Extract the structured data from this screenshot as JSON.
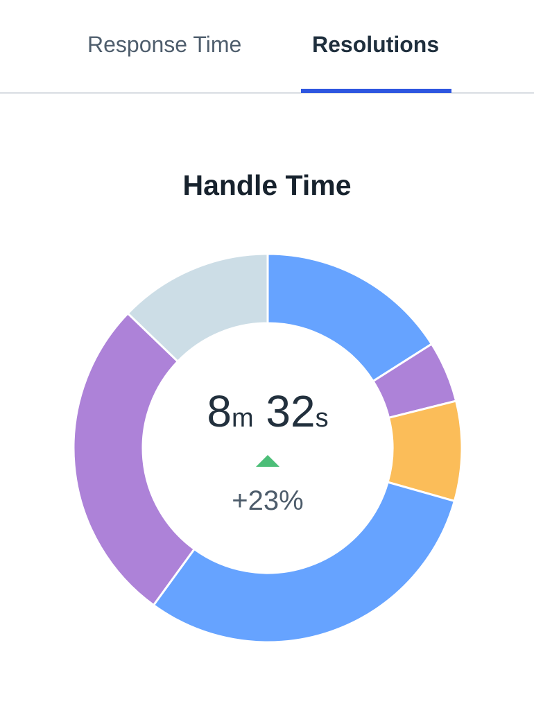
{
  "tabs": [
    {
      "label": "Response Time",
      "active": false
    },
    {
      "label": "Resolutions",
      "active": true
    }
  ],
  "colors": {
    "accent": "#2e56e0",
    "trend_up": "#4cbe78"
  },
  "chart_data": {
    "type": "pie",
    "variant": "donut",
    "title": "Handle Time",
    "center": {
      "minutes": "8",
      "minutes_unit": "m",
      "seconds": "32",
      "seconds_unit": "s",
      "change": "+23%",
      "trend": "up"
    },
    "series": [
      {
        "name": "segment-1",
        "value": 16.0,
        "color": "#66a3ff"
      },
      {
        "name": "segment-2",
        "value": 5.1,
        "color": "#ad82d8"
      },
      {
        "name": "segment-3",
        "value": 8.3,
        "color": "#fbbd59"
      },
      {
        "name": "segment-4",
        "value": 30.6,
        "color": "#66a3ff"
      },
      {
        "name": "segment-5",
        "value": 27.2,
        "color": "#ad82d8"
      },
      {
        "name": "segment-6",
        "value": 12.8,
        "color": "#ccdde6"
      }
    ]
  }
}
